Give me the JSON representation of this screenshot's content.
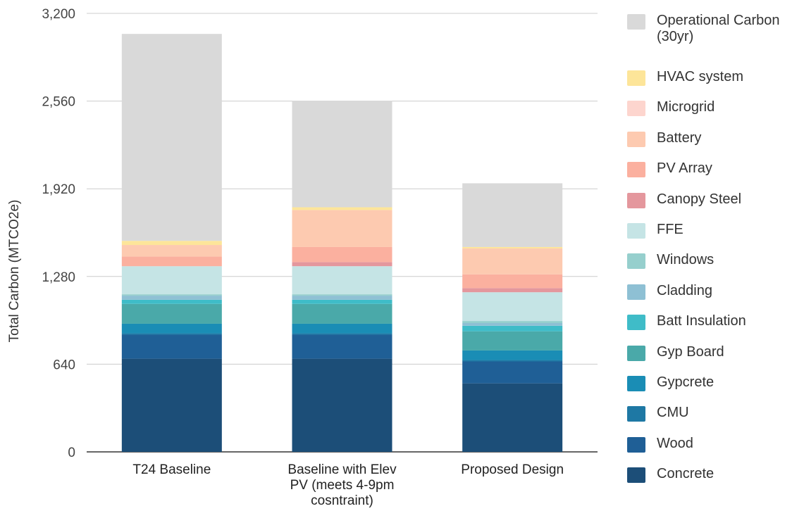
{
  "chart_data": {
    "type": "bar",
    "stacked": true,
    "ylabel": "Total Carbon (MTCO2e)",
    "xlabel": "",
    "ylim": [
      0,
      3200
    ],
    "yticks": [
      0,
      640,
      1280,
      1920,
      2560,
      3200
    ],
    "ytick_labels": [
      "0",
      "640",
      "1,280",
      "1,920",
      "2,560",
      "3,200"
    ],
    "grid": true,
    "legend_position": "right",
    "categories": [
      [
        "T24 Baseline"
      ],
      [
        "Baseline with Elev",
        "PV (meets 4-9pm",
        "cosntraint)"
      ],
      [
        "Proposed Design"
      ]
    ],
    "series": [
      {
        "name": "Concrete",
        "color": "#1c4e78",
        "values": [
          680,
          680,
          500
        ]
      },
      {
        "name": "Wood",
        "color": "#1f5f96",
        "values": [
          175,
          175,
          160
        ]
      },
      {
        "name": "CMU",
        "color": "#1e78a4",
        "values": [
          10,
          10,
          10
        ]
      },
      {
        "name": "Gypcrete",
        "color": "#1a8db5",
        "values": [
          70,
          70,
          70
        ]
      },
      {
        "name": "Gyp Board",
        "color": "#4aa9a9",
        "values": [
          145,
          145,
          140
        ]
      },
      {
        "name": "Batt Insulation",
        "color": "#3fbcc8",
        "values": [
          30,
          30,
          40
        ]
      },
      {
        "name": "Cladding",
        "color": "#8ec0d4",
        "values": [
          30,
          30,
          20
        ]
      },
      {
        "name": "Windows",
        "color": "#96cfcd",
        "values": [
          10,
          10,
          15
        ]
      },
      {
        "name": "FFE",
        "color": "#c5e4e5",
        "values": [
          205,
          205,
          210
        ]
      },
      {
        "name": "Canopy Steel",
        "color": "#e4979d",
        "values": [
          0,
          30,
          30
        ]
      },
      {
        "name": "PV Array",
        "color": "#fbb09f",
        "values": [
          70,
          110,
          100
        ]
      },
      {
        "name": "Battery",
        "color": "#fdcab0",
        "values": [
          85,
          270,
          190
        ]
      },
      {
        "name": "Microgrid",
        "color": "#fdd5ce",
        "values": [
          0,
          0,
          0
        ]
      },
      {
        "name": "HVAC system",
        "color": "#fde599",
        "values": [
          30,
          20,
          10
        ]
      },
      {
        "name": "Operational Carbon (30yr)",
        "legend_lines": [
          "Operational Carbon",
          "(30yr)"
        ],
        "color": "#d9d9d9",
        "values": [
          1510,
          775,
          465
        ]
      }
    ]
  }
}
